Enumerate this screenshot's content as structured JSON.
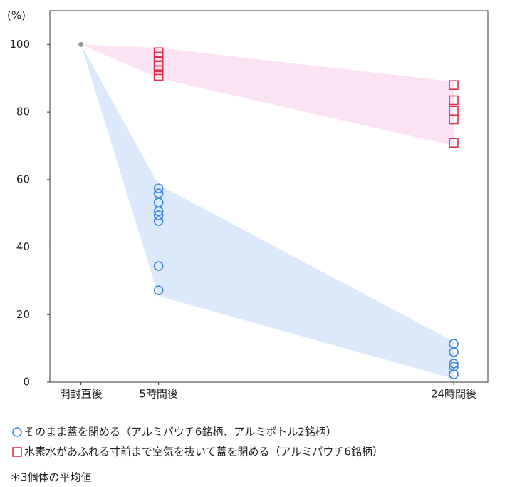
{
  "chart_data": {
    "type": "scatter",
    "y_label": "(%)",
    "xlim": [
      -2,
      26.2
    ],
    "ylim": [
      0,
      110
    ],
    "xticks": [
      {
        "value": 0,
        "label": "開封直後"
      },
      {
        "value": 5,
        "label": "5時間後"
      },
      {
        "value": 24,
        "label": "24時間後"
      }
    ],
    "yticks": [
      0,
      20,
      40,
      60,
      80,
      100
    ],
    "start_point": {
      "x": 0,
      "y": 100,
      "color": "#999999"
    },
    "bands": [
      {
        "color": "#dbe9fb",
        "x": [
          0,
          5,
          24
        ],
        "upper": [
          100,
          58.5,
          12
        ],
        "lower": [
          100,
          25.5,
          1
        ]
      },
      {
        "color": "#fbe3f3",
        "x": [
          0,
          5,
          24
        ],
        "upper": [
          100,
          99,
          89
        ],
        "lower": [
          100,
          90,
          70
        ]
      }
    ],
    "series": [
      {
        "name": "そのまま蓋を閉める（アルミパウチ6銘柄、アルミボトル2銘柄）",
        "color": "#3a86e8",
        "marker": "circle",
        "x": [
          5,
          5,
          5,
          5,
          5,
          5,
          5,
          5,
          24,
          24,
          24,
          24,
          24
        ],
        "values": [
          57.4,
          55.9,
          53.2,
          50.6,
          49.4,
          47.7,
          34.4,
          27.2,
          11.4,
          8.9,
          5.5,
          4.6,
          2.3
        ]
      },
      {
        "name": "水素水があふれる寸前まで空気を抜いて蓋を閉める（アルミパウチ6銘柄）",
        "color": "#e0304a",
        "marker": "square",
        "x": [
          5,
          5,
          5,
          5,
          5,
          5,
          24,
          24,
          24,
          24,
          24
        ],
        "values": [
          97.7,
          96.4,
          94.9,
          93.7,
          92.4,
          90.7,
          88.0,
          83.5,
          80.4,
          77.8,
          70.9
        ]
      }
    ],
    "note": "＊3個体の平均値"
  }
}
